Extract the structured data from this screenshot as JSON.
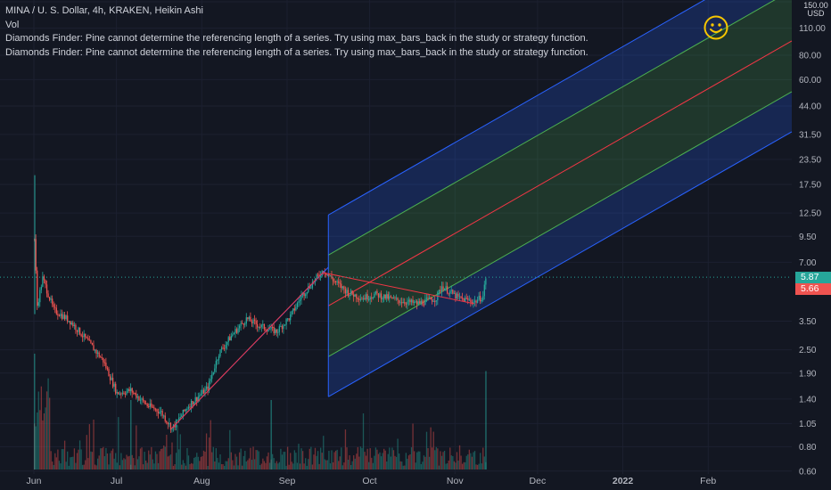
{
  "header": {
    "symbol_line": "MINA / U. S. Dollar, 4h, KRAKEN, Heikin Ashi",
    "vol_label": "Vol",
    "error_1": "Diamonds Finder: Pine cannot determine the referencing length of a series. Try using max_bars_back in the study or strategy function.",
    "error_2": "Diamonds Finder: Pine cannot determine the referencing length of a series. Try using max_bars_back in the study or strategy function."
  },
  "price_axis": {
    "unit_top": "150.00",
    "unit_bottom": "USD",
    "current_price": "5.87",
    "secondary_price": "5.66",
    "current_color": "#26a69a",
    "secondary_color": "#ef5350"
  },
  "chart_data": {
    "type": "candlestick",
    "symbol": "MINA/USD",
    "exchange": "KRAKEN",
    "interval": "4h",
    "style": "Heikin Ashi",
    "y_scale": "log",
    "ylim": [
      0.58,
      150
    ],
    "y_ticks": [
      150,
      110,
      80,
      60,
      44,
      31.5,
      23.5,
      17.5,
      12.5,
      9.5,
      7,
      5.87,
      5.66,
      3.5,
      2.5,
      1.9,
      1.4,
      1.05,
      0.8,
      0.6
    ],
    "y_tick_labels": [
      "150.00",
      "110.00",
      "80.00",
      "60.00",
      "44.00",
      "31.50",
      "23.50",
      "17.50",
      "12.50",
      "9.50",
      "7.00",
      "5.87",
      "5.66",
      "3.50",
      "2.50",
      "1.90",
      "1.40",
      "1.05",
      "0.80",
      "0.60"
    ],
    "x_tick_labels": [
      "Jun",
      "Jul",
      "Aug",
      "Sep",
      "Oct",
      "Nov",
      "Dec",
      "2022",
      "Feb"
    ],
    "x_tick_dates": [
      "2021-06-01",
      "2021-07-01",
      "2021-08-01",
      "2021-09-01",
      "2021-10-01",
      "2021-11-01",
      "2021-12-01",
      "2022-01-01",
      "2022-02-01"
    ],
    "price_path": [
      {
        "date": "2021-06-01",
        "price": 9.2
      },
      {
        "date": "2021-06-02",
        "price": 4.2
      },
      {
        "date": "2021-06-04",
        "price": 5.8
      },
      {
        "date": "2021-06-08",
        "price": 4.0
      },
      {
        "date": "2021-06-14",
        "price": 3.5
      },
      {
        "date": "2021-06-20",
        "price": 2.8
      },
      {
        "date": "2021-06-26",
        "price": 2.2
      },
      {
        "date": "2021-07-01",
        "price": 1.5
      },
      {
        "date": "2021-07-06",
        "price": 1.55
      },
      {
        "date": "2021-07-12",
        "price": 1.3
      },
      {
        "date": "2021-07-17",
        "price": 1.2
      },
      {
        "date": "2021-07-21",
        "price": 0.99
      },
      {
        "date": "2021-07-27",
        "price": 1.3
      },
      {
        "date": "2021-08-03",
        "price": 1.6
      },
      {
        "date": "2021-08-07",
        "price": 2.4
      },
      {
        "date": "2021-08-12",
        "price": 3.0
      },
      {
        "date": "2021-08-17",
        "price": 3.6
      },
      {
        "date": "2021-08-22",
        "price": 3.3
      },
      {
        "date": "2021-08-28",
        "price": 3.1
      },
      {
        "date": "2021-09-02",
        "price": 3.7
      },
      {
        "date": "2021-09-06",
        "price": 4.7
      },
      {
        "date": "2021-09-10",
        "price": 5.5
      },
      {
        "date": "2021-09-14",
        "price": 6.4
      },
      {
        "date": "2021-09-18",
        "price": 5.6
      },
      {
        "date": "2021-09-23",
        "price": 4.9
      },
      {
        "date": "2021-09-28",
        "price": 4.6
      },
      {
        "date": "2021-10-03",
        "price": 4.8
      },
      {
        "date": "2021-10-10",
        "price": 4.5
      },
      {
        "date": "2021-10-18",
        "price": 4.3
      },
      {
        "date": "2021-10-25",
        "price": 4.6
      },
      {
        "date": "2021-10-27",
        "price": 5.3
      },
      {
        "date": "2021-11-02",
        "price": 4.6
      },
      {
        "date": "2021-11-08",
        "price": 4.4
      },
      {
        "date": "2021-11-11",
        "price": 4.7
      },
      {
        "date": "2021-11-12",
        "price": 5.87
      }
    ],
    "pitchfork": {
      "median_start": {
        "date": "2021-08-28",
        "price": 2.95
      },
      "median_end": {
        "date": "2022-03-10",
        "price": 107
      },
      "channel_offsets_ratio": [
        -3.1,
        -1.75,
        0,
        1.75,
        3.1
      ],
      "inner_color": "#4caf50",
      "outer_color": "#2962ff",
      "median_color": "#f23645"
    },
    "trendlines": [
      {
        "from": {
          "date": "2021-07-21",
          "price": 0.99
        },
        "to": {
          "date": "2021-09-16",
          "price": 6.6
        },
        "color": "#2962ff"
      },
      {
        "from": {
          "date": "2021-07-21",
          "price": 0.99
        },
        "to": {
          "date": "2021-09-14",
          "price": 6.2
        },
        "color": "#f23645"
      },
      {
        "from": {
          "date": "2021-09-14",
          "price": 6.2
        },
        "to": {
          "date": "2021-11-08",
          "price": 4.3
        },
        "color": "#f23645"
      }
    ],
    "volume_spikes": [
      {
        "date": "2021-06-01",
        "volume": 1.0
      },
      {
        "date": "2021-11-12",
        "volume": 0.85
      },
      {
        "date": "2021-07-06",
        "volume": 0.6
      },
      {
        "date": "2021-08-26",
        "volume": 0.6
      }
    ]
  }
}
